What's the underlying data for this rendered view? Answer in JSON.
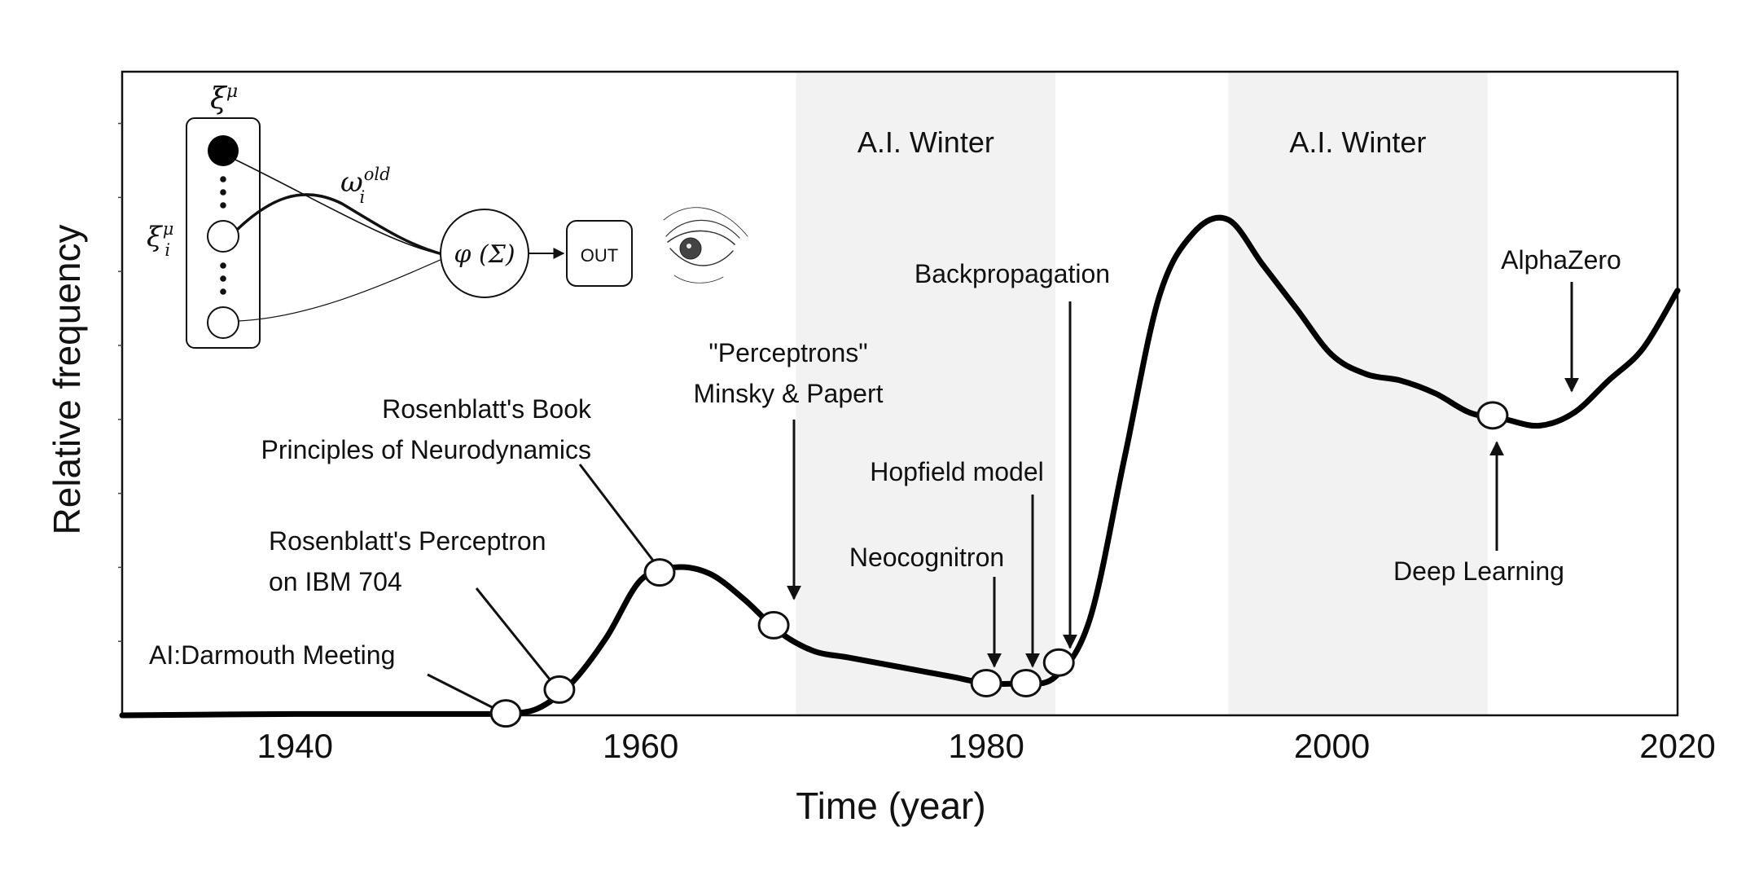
{
  "chart_data": {
    "type": "line",
    "xlabel": "Time (year)",
    "ylabel": "Relative frequency",
    "xlim": [
      1930,
      2020
    ],
    "ylim": [
      0,
      1
    ],
    "xticks": [
      1940,
      1960,
      1980,
      2000,
      2020
    ],
    "grid": false,
    "series": [
      {
        "x": [
          1930,
          1940,
          1950,
          1952,
          1954,
          1956,
          1958,
          1960,
          1962,
          1964,
          1966,
          1968,
          1970,
          1972,
          1974,
          1976,
          1978,
          1980,
          1982,
          1984,
          1986,
          1988,
          1990,
          1992,
          1994,
          1996,
          1998,
          2000,
          2002,
          2004,
          2006,
          2008,
          2010,
          2012,
          2014,
          2016,
          2018,
          2020
        ],
        "y": [
          0.0,
          0.002,
          0.002,
          0.003,
          0.01,
          0.05,
          0.12,
          0.21,
          0.23,
          0.22,
          0.18,
          0.13,
          0.1,
          0.09,
          0.08,
          0.07,
          0.06,
          0.05,
          0.05,
          0.06,
          0.15,
          0.4,
          0.65,
          0.75,
          0.77,
          0.7,
          0.63,
          0.56,
          0.53,
          0.52,
          0.5,
          0.47,
          0.46,
          0.45,
          0.47,
          0.52,
          0.57,
          0.66
        ]
      }
    ],
    "shaded_regions": [
      {
        "x_start": 1969,
        "x_end": 1984,
        "label": "A.I. Winter"
      },
      {
        "x_start": 1994,
        "x_end": 2009,
        "label": "A.I. Winter"
      }
    ],
    "annotations": [
      {
        "key": "darmouth",
        "lines": [
          "AI:Darmouth Meeting"
        ],
        "x": 1952.2,
        "y": 0.003,
        "marker": true
      },
      {
        "key": "perceptron",
        "lines": [
          "Rosenblatt's Perceptron",
          "on IBM 704"
        ],
        "x": 1955.3,
        "y": 0.04,
        "marker": true
      },
      {
        "key": "book",
        "lines": [
          "Rosenblatt's Book",
          "Principles of Neurodynamics"
        ],
        "x": 1961.1,
        "y": 0.222,
        "marker": true
      },
      {
        "key": "minsky",
        "lines": [
          "\"Perceptrons\"",
          "Minsky & Papert"
        ],
        "x": 1967.7,
        "y": 0.14,
        "marker": true
      },
      {
        "key": "neocognitron",
        "lines": [
          "Neocognitron"
        ],
        "x": 1980,
        "y": 0.05,
        "marker": true
      },
      {
        "key": "hopfield",
        "lines": [
          "Hopfield model"
        ],
        "x": 1982.3,
        "y": 0.05,
        "marker": true
      },
      {
        "key": "backprop",
        "lines": [
          "Backpropagation"
        ],
        "x": 1984.2,
        "y": 0.082,
        "marker": true
      },
      {
        "key": "deeplearning",
        "lines": [
          "Deep Learning"
        ],
        "x": 2009.3,
        "y": 0.466,
        "marker": true
      },
      {
        "key": "alphazero",
        "lines": [
          "AlphaZero"
        ],
        "x": 2013.4,
        "y": 0.48,
        "marker": false
      }
    ]
  },
  "inset": {
    "xi_mu": "ξ",
    "xi_mu_sup": "μ",
    "xi_i": "ξ",
    "xi_i_sub": "i",
    "xi_i_sup": "μ",
    "omega": "ω",
    "omega_sub": "i",
    "omega_sup": "old",
    "activation": "φ (Σ)",
    "output": "OUT"
  }
}
